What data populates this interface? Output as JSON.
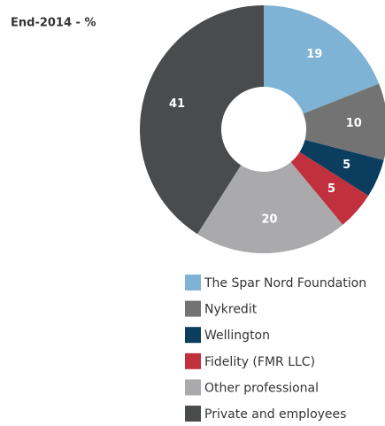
{
  "chart_data": {
    "type": "pie",
    "title": "End-2014 - %",
    "categories": [
      "The Spar Nord Foundation",
      "Nykredit",
      "Wellington",
      "Fidelity (FMR LLC)",
      "Other professional",
      "Private and employees"
    ],
    "values": [
      19,
      10,
      5,
      5,
      20,
      41
    ],
    "colors": [
      "#7fb3d5",
      "#737373",
      "#0b3d5e",
      "#c0313d",
      "#aaaaac",
      "#4a4b4d"
    ],
    "legend": "bottom"
  }
}
